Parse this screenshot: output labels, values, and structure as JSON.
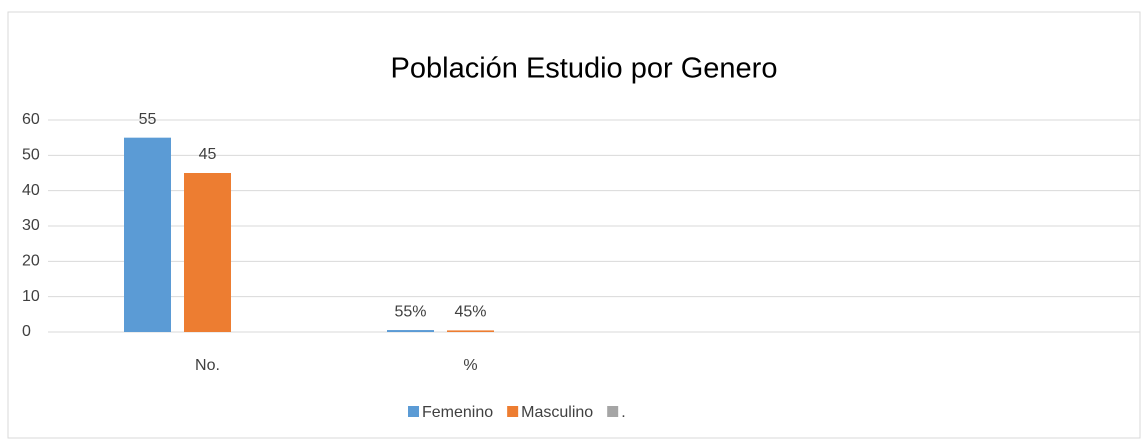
{
  "chart_data": {
    "type": "bar",
    "title": "Población Estudio por Genero",
    "categories": [
      "No.",
      "%",
      null,
      null
    ],
    "series": [
      {
        "name": "Femenino",
        "color": "#5b9bd5",
        "values": [
          55,
          0.55,
          null,
          null
        ],
        "value_labels": [
          "55",
          "55%",
          null,
          null
        ]
      },
      {
        "name": "Masculino",
        "color": "#ed7d31",
        "values": [
          45,
          0.45,
          null,
          null
        ],
        "value_labels": [
          "45",
          "45%",
          null,
          null
        ]
      },
      {
        "name": ".",
        "color": "#a5a5a5",
        "values": [
          null,
          null,
          null,
          null
        ]
      }
    ],
    "ylim": [
      0,
      60
    ],
    "yticks": [
      0,
      10,
      20,
      30,
      40,
      50,
      60
    ],
    "grid": true,
    "legend": "bottom"
  }
}
